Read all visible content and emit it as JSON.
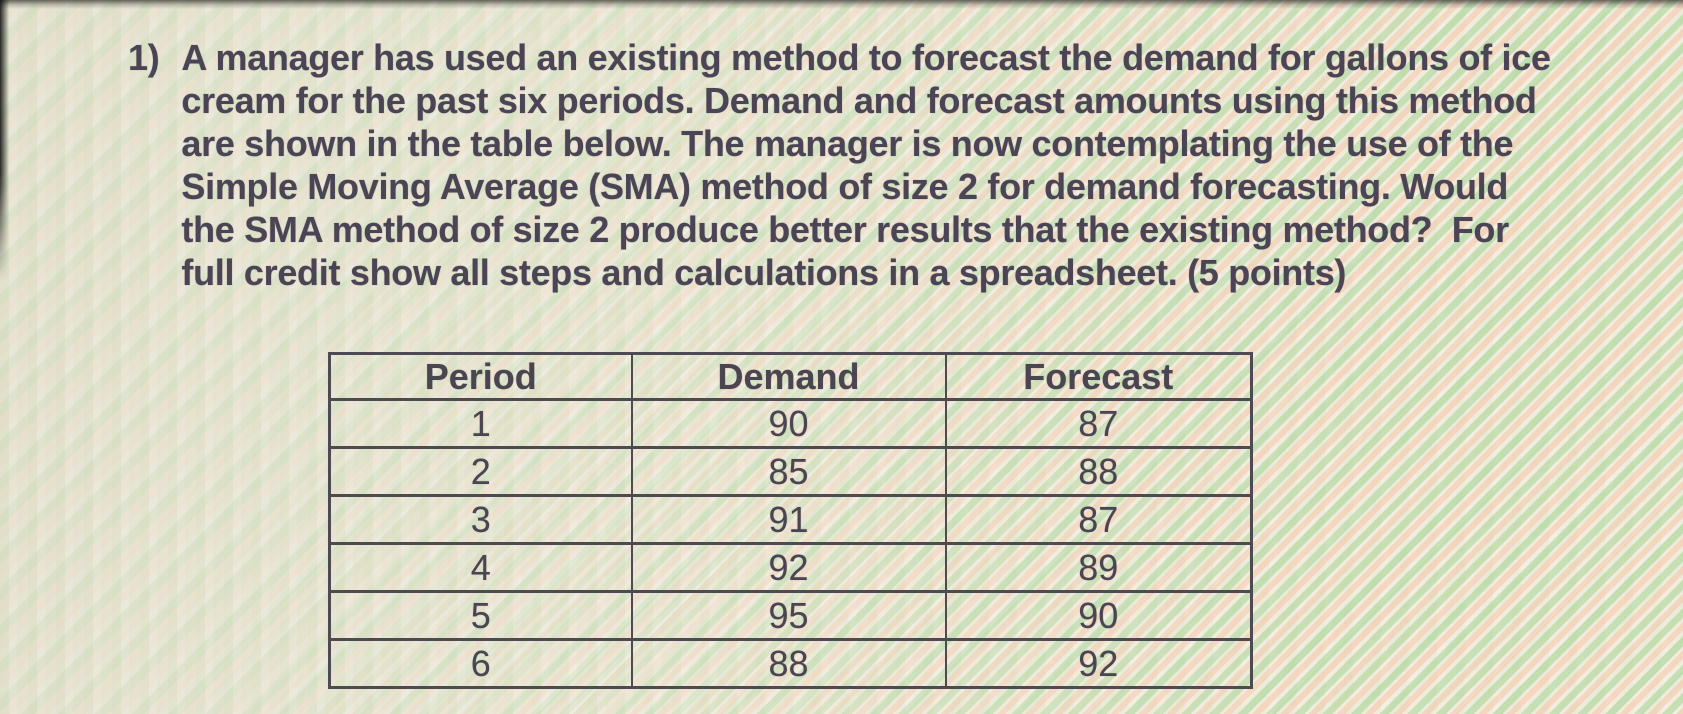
{
  "question": {
    "number": "1)",
    "lines": [
      "A manager has used an existing method to forecast the demand for gallons of ice",
      "cream for the past six periods. Demand and forecast amounts using this method",
      "are shown in the table below. The manager is now contemplating the use of the",
      "Simple Moving Average (SMA) method of size 2 for demand forecasting. Would",
      "the SMA method of size 2 produce better results that the existing method?  For",
      "full credit show all steps and calculations in a spreadsheet. (5 points)"
    ]
  },
  "table": {
    "headers": [
      "Period",
      "Demand",
      "Forecast"
    ],
    "rows": [
      [
        "1",
        "90",
        "87"
      ],
      [
        "2",
        "85",
        "88"
      ],
      [
        "3",
        "91",
        "87"
      ],
      [
        "4",
        "92",
        "89"
      ],
      [
        "5",
        "95",
        "90"
      ],
      [
        "6",
        "88",
        "92"
      ]
    ]
  },
  "chart_data": {
    "type": "table",
    "title": "",
    "categories": [
      "Period",
      "Demand",
      "Forecast"
    ],
    "series": [
      {
        "name": "Period",
        "values": [
          1,
          2,
          3,
          4,
          5,
          6
        ]
      },
      {
        "name": "Demand",
        "values": [
          90,
          85,
          91,
          92,
          95,
          88
        ]
      },
      {
        "name": "Forecast",
        "values": [
          87,
          88,
          87,
          89,
          90,
          92
        ]
      }
    ]
  },
  "colors": {
    "background": "#e9e7d7",
    "text": "#4a4454",
    "table_border": "#4e4a54",
    "moire_green": "#a8d696",
    "moire_peach": "#facaaf"
  }
}
